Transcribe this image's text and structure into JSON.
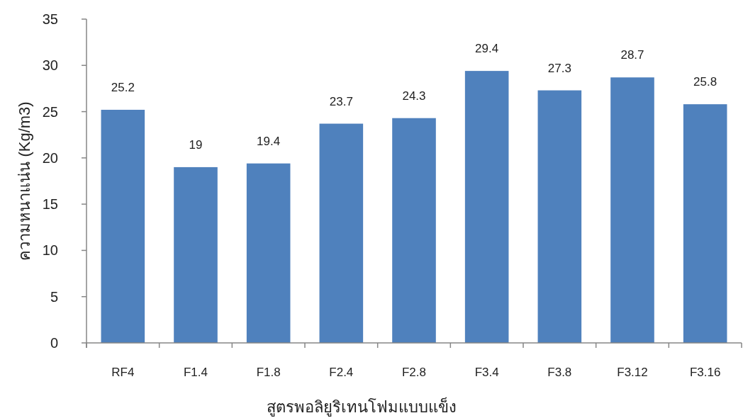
{
  "chart_data": {
    "type": "bar",
    "categories": [
      "RF4",
      "F1.4",
      "F1.8",
      "F2.4",
      "F2.8",
      "F3.4",
      "F3.8",
      "F3.12",
      "F3.16"
    ],
    "values": [
      25.2,
      19,
      19.4,
      23.7,
      24.3,
      29.4,
      27.3,
      28.7,
      25.8
    ],
    "color": "#4f81bd",
    "xlabel": "สูตรพอลิยูริเทนโฟมแบบแข็ง",
    "ylabel": "ความหนาแน่น (Kg/m3)",
    "ylim": [
      0,
      35
    ],
    "yticks": [
      0,
      5,
      10,
      15,
      20,
      25,
      30,
      35
    ],
    "data_labels": true
  }
}
